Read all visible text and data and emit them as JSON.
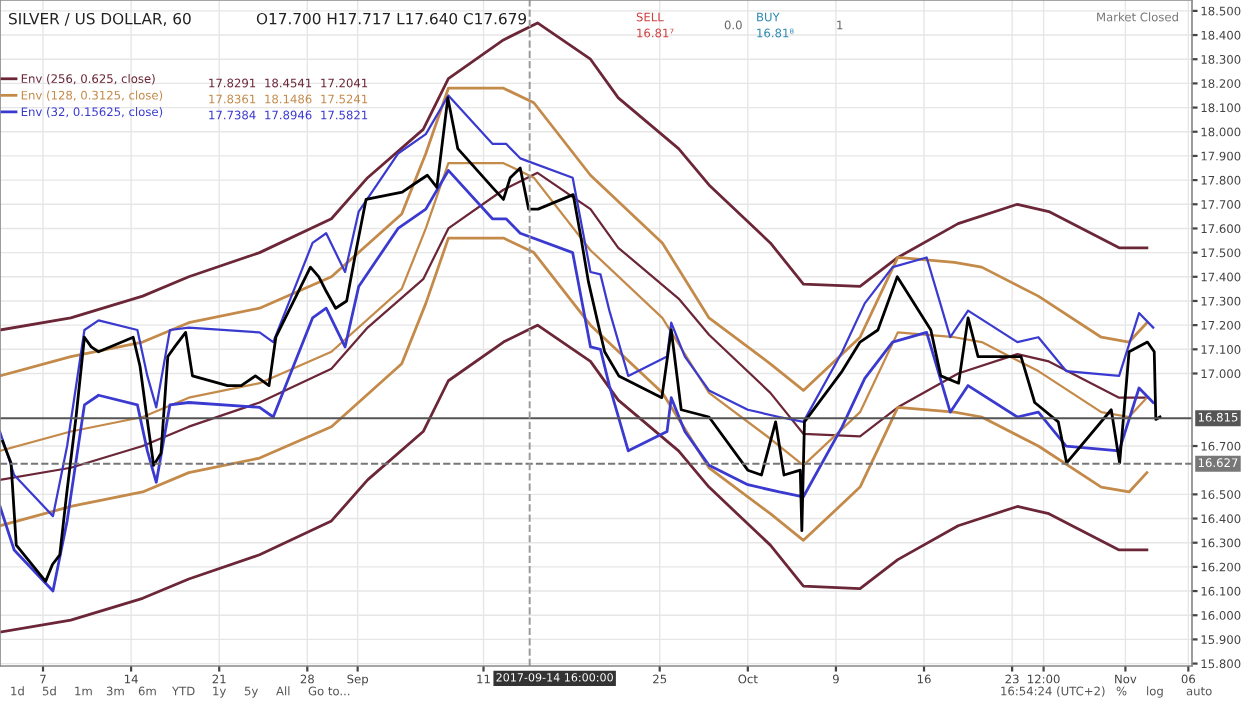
{
  "chart_data": {
    "type": "line",
    "title": "SILVER / US DOLLAR, 60",
    "subtitle": "O17.700 H17.717 L17.640 C17.679",
    "xlim": [
      "2017-08-03T14:00",
      "2017-11-06T07:00"
    ],
    "ylim": [
      15.79,
      18.545
    ],
    "xticks": [
      {
        "value": "2017-08-07",
        "label": "7"
      },
      {
        "value": "2017-08-14",
        "label": "14"
      },
      {
        "value": "2017-08-21",
        "label": "21"
      },
      {
        "value": "2017-08-28",
        "label": "28"
      },
      {
        "value": "2017-09-01",
        "label": "Sep"
      },
      {
        "value": "2017-09-11",
        "label": "11"
      },
      {
        "value": "2017-09-25",
        "label": "25"
      },
      {
        "value": "2017-10-02",
        "label": "Oct"
      },
      {
        "value": "2017-10-09",
        "label": "9"
      },
      {
        "value": "2017-10-16",
        "label": "16"
      },
      {
        "value": "2017-10-23",
        "label": "23"
      },
      {
        "value": "2017-10-25T12:00",
        "label": "12:00"
      },
      {
        "value": "2017-11-01",
        "label": "Nov"
      },
      {
        "value": "2017-11-06",
        "label": "06"
      }
    ],
    "yticks": [
      {
        "value": 18.5,
        "label": "18.500"
      },
      {
        "value": 18.4,
        "label": "18.400"
      },
      {
        "value": 18.3,
        "label": "18.300"
      },
      {
        "value": 18.2,
        "label": "18.200"
      },
      {
        "value": 18.1,
        "label": "18.100"
      },
      {
        "value": 18.0,
        "label": "18.000"
      },
      {
        "value": 17.9,
        "label": "17.900"
      },
      {
        "value": 17.8,
        "label": "17.800"
      },
      {
        "value": 17.7,
        "label": "17.700"
      },
      {
        "value": 17.6,
        "label": "17.600"
      },
      {
        "value": 17.5,
        "label": "17.500"
      },
      {
        "value": 17.4,
        "label": "17.400"
      },
      {
        "value": 17.3,
        "label": "17.300"
      },
      {
        "value": 17.2,
        "label": "17.200"
      },
      {
        "value": 17.1,
        "label": "17.100"
      },
      {
        "value": 17.0,
        "label": "17.000"
      },
      {
        "value": 16.7,
        "label": "16.700"
      },
      {
        "value": 16.5,
        "label": "16.500"
      },
      {
        "value": 16.4,
        "label": "16.400"
      },
      {
        "value": 16.3,
        "label": "16.300"
      },
      {
        "value": 16.2,
        "label": "16.200"
      },
      {
        "value": 16.1,
        "label": "16.100"
      },
      {
        "value": 16.0,
        "label": "16.000"
      },
      {
        "value": 15.9,
        "label": "15.900"
      },
      {
        "value": 15.8,
        "label": "15.800"
      }
    ],
    "grid": true,
    "legend": "top left",
    "series": [
      {
        "color": "#6b2637",
        "x": [
          "2017-08-03T14:00",
          "2017-08-09T05:00",
          "2017-08-14T22:00",
          "2017-08-18T14:00",
          "2017-08-24T05:00",
          "2017-08-29T22:00",
          "2017-09-01T19:00",
          "2017-09-06T05:00",
          "2017-09-08T05:00",
          "2017-09-12T14:00",
          "2017-09-15T07:00",
          "2017-09-19T12:00",
          "2017-09-21T17:00",
          "2017-09-26T12:00",
          "2017-09-28T22:00",
          "2017-10-03T19:00",
          "2017-10-06T10:00",
          "2017-10-10T22:00",
          "2017-10-13T22:00",
          "2017-10-18T17:00",
          "2017-10-23T10:00",
          "2017-10-25T22:00",
          "2017-10-31T12:00",
          "2017-11-02T17:00"
        ],
        "values": [
          17.18,
          17.23,
          17.32,
          17.4,
          17.5,
          17.64,
          17.81,
          18.01,
          18.22,
          18.38,
          18.45,
          18.3,
          18.14,
          17.93,
          17.78,
          17.54,
          17.37,
          17.36,
          17.48,
          17.62,
          17.7,
          17.67,
          17.52,
          17.52
        ]
      },
      {
        "name": "Env (256, 0.625, close)",
        "color": "#6b2637",
        "x": [
          "2017-08-03T14:00",
          "2017-08-09T05:00",
          "2017-08-14T22:00",
          "2017-08-18T14:00",
          "2017-08-24T05:00",
          "2017-08-29T22:00",
          "2017-09-01T19:00",
          "2017-09-06T05:00",
          "2017-09-08T05:00",
          "2017-09-12T14:00",
          "2017-09-15T07:00",
          "2017-09-19T12:00",
          "2017-09-21T17:00",
          "2017-09-26T12:00",
          "2017-09-28T22:00",
          "2017-10-03T19:00",
          "2017-10-06T10:00",
          "2017-10-10T22:00",
          "2017-10-13T22:00",
          "2017-10-18T17:00",
          "2017-10-23T10:00",
          "2017-10-25T22:00",
          "2017-10-31T12:00",
          "2017-11-02T17:00"
        ],
        "values": [
          16.56,
          16.61,
          16.7,
          16.78,
          16.88,
          17.02,
          17.19,
          17.39,
          17.6,
          17.76,
          17.83,
          17.68,
          17.52,
          17.31,
          17.16,
          16.92,
          16.75,
          16.74,
          16.86,
          17.0,
          17.08,
          17.05,
          16.9,
          16.9
        ]
      },
      {
        "color": "#6b2637",
        "x": [
          "2017-08-03T14:00",
          "2017-08-09T05:00",
          "2017-08-14T22:00",
          "2017-08-18T14:00",
          "2017-08-24T05:00",
          "2017-08-29T22:00",
          "2017-09-01T19:00",
          "2017-09-06T05:00",
          "2017-09-08T05:00",
          "2017-09-12T14:00",
          "2017-09-15T07:00",
          "2017-09-19T12:00",
          "2017-09-21T17:00",
          "2017-09-26T12:00",
          "2017-09-28T22:00",
          "2017-10-03T19:00",
          "2017-10-06T10:00",
          "2017-10-10T22:00",
          "2017-10-13T22:00",
          "2017-10-18T17:00",
          "2017-10-23T10:00",
          "2017-10-25T22:00",
          "2017-10-31T12:00",
          "2017-11-02T17:00"
        ],
        "values": [
          15.93,
          15.98,
          16.07,
          16.15,
          16.25,
          16.39,
          16.56,
          16.76,
          16.97,
          17.13,
          17.2,
          17.05,
          16.89,
          16.68,
          16.53,
          16.29,
          16.12,
          16.11,
          16.23,
          16.37,
          16.45,
          16.42,
          16.27,
          16.27
        ]
      },
      {
        "color": "#c48a4a",
        "x": [
          "2017-08-03T14:00",
          "2017-08-09T05:00",
          "2017-08-14T22:00",
          "2017-08-18T14:00",
          "2017-08-24T05:00",
          "2017-08-29T22:00",
          "2017-09-04T12:00",
          "2017-09-06T10:00",
          "2017-09-08T05:00",
          "2017-09-12T14:00",
          "2017-09-15T00:00",
          "2017-09-19T12:00",
          "2017-09-25T05:00",
          "2017-09-28T22:00",
          "2017-10-03T19:00",
          "2017-10-06T10:00",
          "2017-10-10T22:00",
          "2017-10-13T22:00",
          "2017-10-18T10:00",
          "2017-10-20T14:00",
          "2017-10-25T02:00",
          "2017-10-30T02:00",
          "2017-11-01T07:00",
          "2017-11-02T17:00"
        ],
        "values": [
          16.99,
          17.07,
          17.13,
          17.21,
          17.27,
          17.4,
          17.66,
          17.91,
          18.18,
          18.18,
          18.12,
          17.82,
          17.54,
          17.23,
          17.04,
          16.93,
          17.15,
          17.48,
          17.46,
          17.44,
          17.32,
          17.15,
          17.13,
          17.21
        ]
      },
      {
        "name": "Env (128, 0.3125, close)",
        "color": "#c48a4a",
        "x": [
          "2017-08-03T14:00",
          "2017-08-09T05:00",
          "2017-08-14T22:00",
          "2017-08-18T14:00",
          "2017-08-24T05:00",
          "2017-08-29T22:00",
          "2017-09-04T12:00",
          "2017-09-06T10:00",
          "2017-09-08T05:00",
          "2017-09-12T14:00",
          "2017-09-15T00:00",
          "2017-09-19T12:00",
          "2017-09-25T05:00",
          "2017-09-28T22:00",
          "2017-10-03T19:00",
          "2017-10-06T10:00",
          "2017-10-10T22:00",
          "2017-10-13T22:00",
          "2017-10-18T10:00",
          "2017-10-20T14:00",
          "2017-10-25T02:00",
          "2017-10-30T02:00",
          "2017-11-01T07:00",
          "2017-11-02T17:00"
        ],
        "values": [
          16.68,
          16.76,
          16.82,
          16.9,
          16.96,
          17.09,
          17.35,
          17.6,
          17.87,
          17.87,
          17.81,
          17.51,
          17.23,
          16.92,
          16.73,
          16.62,
          16.84,
          17.17,
          17.15,
          17.13,
          17.01,
          16.84,
          16.82,
          16.9
        ]
      },
      {
        "color": "#c48a4a",
        "x": [
          "2017-08-03T14:00",
          "2017-08-09T05:00",
          "2017-08-14T22:00",
          "2017-08-18T14:00",
          "2017-08-24T05:00",
          "2017-08-29T22:00",
          "2017-09-04T12:00",
          "2017-09-06T10:00",
          "2017-09-08T05:00",
          "2017-09-12T14:00",
          "2017-09-15T00:00",
          "2017-09-19T12:00",
          "2017-09-25T05:00",
          "2017-09-28T22:00",
          "2017-10-03T19:00",
          "2017-10-06T10:00",
          "2017-10-10T22:00",
          "2017-10-13T22:00",
          "2017-10-18T10:00",
          "2017-10-20T14:00",
          "2017-10-25T02:00",
          "2017-10-30T02:00",
          "2017-11-01T07:00",
          "2017-11-02T17:00"
        ],
        "values": [
          16.37,
          16.45,
          16.51,
          16.59,
          16.65,
          16.78,
          17.04,
          17.29,
          17.56,
          17.56,
          17.5,
          17.2,
          16.92,
          16.61,
          16.42,
          16.31,
          16.53,
          16.86,
          16.84,
          16.82,
          16.7,
          16.53,
          16.51,
          16.59
        ]
      },
      {
        "name": "Env (32, 0.15625, close)",
        "color": "#3a3ad0",
        "x": [
          "2017-08-03T14:00",
          "2017-08-04T17:00",
          "2017-08-07T19:00",
          "2017-08-08T22:00",
          "2017-08-10T07:00",
          "2017-08-11T10:00",
          "2017-08-14T12:00",
          "2017-08-15T07:00",
          "2017-08-16T00:00",
          "2017-08-17T02:00",
          "2017-08-18T14:00",
          "2017-08-24T05:00",
          "2017-08-25T07:00",
          "2017-08-28T10:00",
          "2017-08-29T12:00",
          "2017-08-31T00:00",
          "2017-09-01T02:00",
          "2017-09-04T05:00",
          "2017-09-06T10:00",
          "2017-09-08T05:00",
          "2017-09-11T17:00",
          "2017-09-12T19:00",
          "2017-09-13T22:00",
          "2017-09-18T02:00",
          "2017-09-19T12:00",
          "2017-09-20T07:00",
          "2017-09-21T00:00",
          "2017-09-22T12:00",
          "2017-09-25T14:00",
          "2017-09-25T22:00",
          "2017-09-27T00:00",
          "2017-09-28T22:00",
          "2017-10-02T00:00",
          "2017-10-04T12:00",
          "2017-10-06T10:00",
          "2017-10-09T12:00",
          "2017-10-11T07:00",
          "2017-10-13T12:00",
          "2017-10-16T05:00",
          "2017-10-17T07:00",
          "2017-10-18T02:00",
          "2017-10-19T12:00",
          "2017-10-23T10:00",
          "2017-10-25T02:00",
          "2017-10-27T07:00",
          "2017-10-31T12:00",
          "2017-11-02T02:00",
          "2017-11-03T05:00"
        ],
        "values": [
          16.76,
          16.58,
          16.41,
          16.7,
          17.18,
          17.22,
          17.18,
          16.99,
          16.86,
          17.18,
          17.19,
          17.17,
          17.13,
          17.54,
          17.58,
          17.42,
          17.67,
          17.91,
          17.99,
          18.15,
          17.95,
          17.95,
          17.89,
          17.81,
          17.42,
          17.41,
          17.26,
          16.99,
          17.07,
          17.21,
          17.07,
          16.93,
          16.85,
          16.82,
          16.8,
          17.09,
          17.29,
          17.44,
          17.48,
          17.29,
          17.15,
          17.26,
          17.13,
          17.15,
          17.01,
          16.99,
          17.25,
          17.19
        ]
      },
      {
        "color": "#3a3ad0",
        "x": [
          "2017-08-03T14:00",
          "2017-08-04T17:00",
          "2017-08-07T19:00",
          "2017-08-08T22:00",
          "2017-08-10T07:00",
          "2017-08-11T10:00",
          "2017-08-14T12:00",
          "2017-08-15T07:00",
          "2017-08-16T00:00",
          "2017-08-17T02:00",
          "2017-08-18T14:00",
          "2017-08-24T05:00",
          "2017-08-25T07:00",
          "2017-08-28T10:00",
          "2017-08-29T12:00",
          "2017-08-31T00:00",
          "2017-09-01T02:00",
          "2017-09-04T05:00",
          "2017-09-06T10:00",
          "2017-09-08T05:00",
          "2017-09-11T17:00",
          "2017-09-12T19:00",
          "2017-09-13T22:00",
          "2017-09-18T02:00",
          "2017-09-19T12:00",
          "2017-09-20T07:00",
          "2017-09-21T00:00",
          "2017-09-22T12:00",
          "2017-09-25T14:00",
          "2017-09-25T22:00",
          "2017-09-27T00:00",
          "2017-09-28T22:00",
          "2017-10-02T00:00",
          "2017-10-04T12:00",
          "2017-10-06T10:00",
          "2017-10-09T12:00",
          "2017-10-11T07:00",
          "2017-10-13T12:00",
          "2017-10-16T05:00",
          "2017-10-17T07:00",
          "2017-10-18T02:00",
          "2017-10-19T12:00",
          "2017-10-23T10:00",
          "2017-10-25T02:00",
          "2017-10-27T07:00",
          "2017-10-31T12:00",
          "2017-11-02T02:00",
          "2017-11-03T05:00"
        ],
        "values": [
          16.45,
          16.27,
          16.1,
          16.39,
          16.87,
          16.91,
          16.87,
          16.68,
          16.55,
          16.87,
          16.88,
          16.86,
          16.82,
          17.23,
          17.27,
          17.11,
          17.36,
          17.6,
          17.68,
          17.84,
          17.64,
          17.64,
          17.58,
          17.5,
          17.11,
          17.1,
          16.95,
          16.68,
          16.76,
          16.9,
          16.76,
          16.62,
          16.54,
          16.51,
          16.49,
          16.78,
          16.98,
          17.13,
          17.17,
          16.98,
          16.84,
          16.95,
          16.82,
          16.84,
          16.7,
          16.68,
          16.94,
          16.88
        ]
      },
      {
        "color": "#000000",
        "x": [
          "2017-08-03T19:00",
          "2017-08-04T11:00",
          "2017-08-04T21:00",
          "2017-08-07T05:00",
          "2017-08-07T18:00",
          "2017-08-08T08:00",
          "2017-08-08T21:00",
          "2017-08-09T15:00",
          "2017-08-10T07:00",
          "2017-08-10T20:00",
          "2017-08-11T10:00",
          "2017-08-14T04:00",
          "2017-08-14T17:00",
          "2017-08-15T06:00",
          "2017-08-15T19:00",
          "2017-08-16T09:00",
          "2017-08-16T22:00",
          "2017-08-17T11:00",
          "2017-08-18T08:00",
          "2017-08-18T21:00",
          "2017-08-21T16:00",
          "2017-08-22T18:00",
          "2017-08-23T21:00",
          "2017-08-24T23:00",
          "2017-08-25T12:00",
          "2017-08-28T06:00",
          "2017-08-28T22:00",
          "2017-08-29T12:00",
          "2017-08-30T06:00",
          "2017-08-31T03:00",
          "2017-08-31T22:00",
          "2017-09-01T16:00",
          "2017-09-04T13:00",
          "2017-09-05T16:00",
          "2017-09-06T13:00",
          "2017-09-07T07:00",
          "2017-09-08T04:00",
          "2017-09-08T23:00",
          "2017-09-11T17:00",
          "2017-09-12T14:00",
          "2017-09-13T03:00",
          "2017-09-13T22:00",
          "2017-09-14T14:00",
          "2017-09-15T08:00",
          "2017-09-18T03:00",
          "2017-09-18T18:00",
          "2017-09-19T08:00",
          "2017-09-20T02:00",
          "2017-09-20T15:00",
          "2017-09-21T18:00",
          "2017-09-25T04:00",
          "2017-09-25T22:00",
          "2017-09-26T17:00",
          "2017-09-28T22:00",
          "2017-10-02T00:00",
          "2017-10-03T02:00",
          "2017-10-04T05:00",
          "2017-10-04T21:00",
          "2017-10-06T04:00",
          "2017-10-06T07:00",
          "2017-10-06T12:00",
          "2017-10-09T12:00",
          "2017-10-10T22:00",
          "2017-10-12T08:00",
          "2017-10-13T21:00",
          "2017-10-16T13:00",
          "2017-10-17T08:00",
          "2017-10-18T18:00",
          "2017-10-19T12:00",
          "2017-10-20T07:00",
          "2017-10-23T17:00",
          "2017-10-24T19:00",
          "2017-10-26T16:00",
          "2017-10-27T08:00",
          "2017-10-30T21:00",
          "2017-10-31T13:00",
          "2017-11-01T07:00",
          "2017-11-02T18:00",
          "2017-11-03T07:00",
          "2017-11-03T10:00",
          "2017-11-03T18:00"
        ],
        "values": [
          16.72,
          16.63,
          16.29,
          16.14,
          16.21,
          16.25,
          16.5,
          16.82,
          17.15,
          17.11,
          17.09,
          17.15,
          17.03,
          16.82,
          16.62,
          16.67,
          17.07,
          17.11,
          17.17,
          16.99,
          16.95,
          16.95,
          16.99,
          16.95,
          17.15,
          17.44,
          17.4,
          17.34,
          17.27,
          17.3,
          17.52,
          17.72,
          17.75,
          17.79,
          17.82,
          17.77,
          18.14,
          17.93,
          17.77,
          17.72,
          17.81,
          17.85,
          17.68,
          17.68,
          17.74,
          17.56,
          17.38,
          17.21,
          17.09,
          16.99,
          16.9,
          17.18,
          16.85,
          16.82,
          16.6,
          16.58,
          16.8,
          16.58,
          16.6,
          16.35,
          16.8,
          17.01,
          17.13,
          17.18,
          17.4,
          17.18,
          16.99,
          16.96,
          17.23,
          17.07,
          17.07,
          16.88,
          16.8,
          16.63,
          16.85,
          16.63,
          17.09,
          17.13,
          17.09,
          16.81,
          16.82
        ]
      }
    ],
    "ref_lines": [
      {
        "axis": "y",
        "value": 16.815,
        "label": "16.815",
        "color": "#555555",
        "line_style": "solid"
      },
      {
        "axis": "y",
        "value": 16.627,
        "label": "16.627",
        "color": "#777777",
        "line_style": "dashed"
      },
      {
        "axis": "x",
        "value": "2017-09-14T16:00",
        "label": "2017-09-14 16:00:00",
        "color": "#999999",
        "line_style": "dashed"
      }
    ],
    "annotations": [
      "17.8291",
      "18.4541",
      "17.2041",
      "17.8361",
      "18.1486",
      "17.5241",
      "17.7384",
      "17.8946",
      "17.5821",
      "SELL",
      "16.81⁷",
      "0.0",
      "BUY",
      "16.81⁸",
      "1",
      "Market Closed",
      "1d",
      "5d",
      "1m",
      "3m",
      "6m",
      "YTD",
      "1y",
      "5y",
      "All",
      "Go to...",
      "16:54:24 (UTC+2)",
      "%",
      "log",
      "auto"
    ]
  }
}
